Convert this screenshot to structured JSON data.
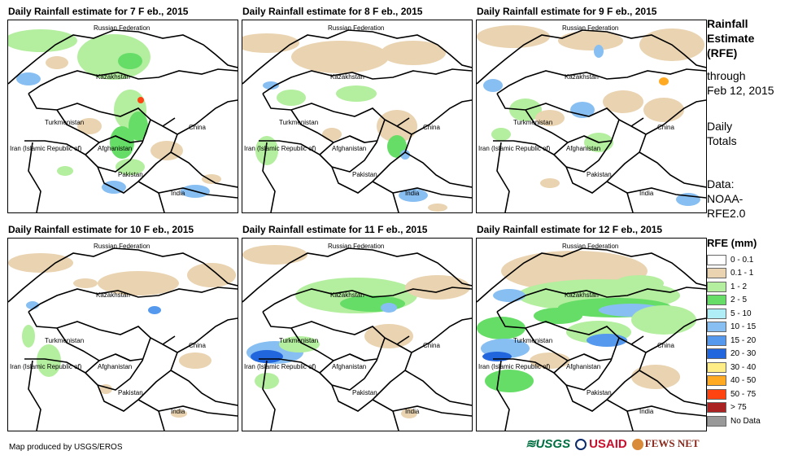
{
  "panels": [
    {
      "title": "Daily Rainfall estimate for 7 F eb., 2015",
      "countries": {
        "russia": "Russian Federation",
        "kazakhstan": "Kazakhstan",
        "turkmenistan": "Turkmenistan",
        "iran": "Iran (Islamic Republic of)",
        "afghanistan": "Afghanistan",
        "pakistan": "Pakistan",
        "india": "India",
        "china": "China"
      }
    },
    {
      "title": "Daily Rainfall estimate for 8 F eb., 2015",
      "countries": {
        "russia": "Russian Federation",
        "kazakhstan": "Kazakhstan",
        "turkmenistan": "Turkmenistan",
        "iran": "Iran (Islamic Republic of)",
        "afghanistan": "Afghanistan",
        "pakistan": "Pakistan",
        "india": "India",
        "china": "China"
      }
    },
    {
      "title": "Daily Rainfall estimate for 9 F eb., 2015",
      "countries": {
        "russia": "Russian Federation",
        "kazakhstan": "Kazakhstan",
        "turkmenistan": "Turkmenistan",
        "iran": "Iran (Islamic Republic of)",
        "afghanistan": "Afghanistan",
        "pakistan": "Pakistan",
        "india": "India",
        "china": "China"
      }
    },
    {
      "title": "Daily Rainfall estimate for 10 F eb., 2015",
      "countries": {
        "russia": "Russian Federation",
        "kazakhstan": "Kazakhstan",
        "turkmenistan": "Turkmenistan",
        "iran": "Iran (Islamic Republic of)",
        "afghanistan": "Afghanistan",
        "pakistan": "Pakistan",
        "india": "India",
        "china": "China"
      }
    },
    {
      "title": "Daily Rainfall estimate for 11 F eb., 2015",
      "countries": {
        "russia": "Russian Federation",
        "kazakhstan": "Kazakhstan",
        "turkmenistan": "Turkmenistan",
        "iran": "Iran (Islamic Republic of)",
        "afghanistan": "Afghanistan",
        "pakistan": "Pakistan",
        "india": "India",
        "china": "China"
      }
    },
    {
      "title": "Daily Rainfall estimate for 12 F eb., 2015",
      "countries": {
        "russia": "Russian Federation",
        "kazakhstan": "Kazakhstan",
        "turkmenistan": "Turkmenistan",
        "iran": "Iran (Islamic Republic of)",
        "afghanistan": "Afghanistan",
        "pakistan": "Pakistan",
        "india": "India",
        "china": "China"
      }
    }
  ],
  "side": {
    "title_l1": "Rainfall",
    "title_l2": "Estimate",
    "title_l3": "(RFE)",
    "through": "through",
    "date": "Feb 12, 2015",
    "daily": "Daily",
    "totals": "Totals",
    "data_label": "Data:",
    "source_l1": "NOAA-",
    "source_l2": "RFE2.0"
  },
  "legend": {
    "title": "RFE (mm)",
    "items": [
      {
        "label": "0 - 0.1",
        "color": "#ffffff"
      },
      {
        "label": "0.1 - 1",
        "color": "#e9d3b0"
      },
      {
        "label": "1 - 2",
        "color": "#b4ee9f"
      },
      {
        "label": "2 - 5",
        "color": "#66dd66"
      },
      {
        "label": "5 - 10",
        "color": "#b0eef7"
      },
      {
        "label": "10 - 15",
        "color": "#88bff2"
      },
      {
        "label": "15 - 20",
        "color": "#5599ee"
      },
      {
        "label": "20 - 30",
        "color": "#2266dd"
      },
      {
        "label": "30 - 40",
        "color": "#ffee88"
      },
      {
        "label": "40 - 50",
        "color": "#ffaa22"
      },
      {
        "label": "50 - 75",
        "color": "#ff4411"
      },
      {
        "label": "> 75",
        "color": "#aa2222"
      },
      {
        "label": "No Data",
        "color": "#999999"
      }
    ]
  },
  "credit": "Map produced by USGS/EROS",
  "logos": {
    "usgs": "USGS",
    "usaid": "USAID",
    "fewsnet": "FEWS NET"
  }
}
